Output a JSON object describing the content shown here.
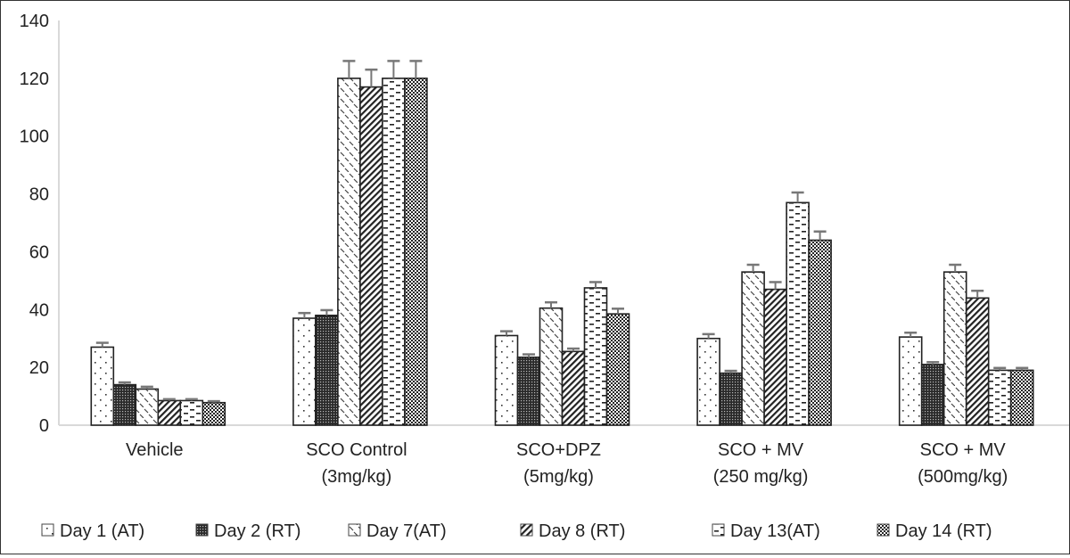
{
  "chart_data": {
    "type": "bar",
    "title": "",
    "xlabel": "",
    "ylabel": "",
    "ylim": [
      0,
      140
    ],
    "yticks": [
      "0",
      "20",
      "40",
      "60",
      "80",
      "100",
      "120",
      "140"
    ],
    "grid": false,
    "legend_position": "bottom",
    "categories": [
      [
        "Vehicle"
      ],
      [
        "SCO Control",
        "(3mg/kg)"
      ],
      [
        "SCO+DPZ",
        "(5mg/kg)"
      ],
      [
        "SCO + MV",
        "(250 mg/kg)"
      ],
      [
        "SCO + MV",
        "(500mg/kg)"
      ]
    ],
    "series": [
      {
        "name": "Day 1 (AT)",
        "pattern": "dots",
        "values": [
          27,
          37,
          31,
          30,
          30.5
        ],
        "errors": [
          1.5,
          1.8,
          1.5,
          1.5,
          1.5
        ]
      },
      {
        "name": "Day 2 (RT)",
        "pattern": "dense-grid",
        "values": [
          14,
          38,
          23.5,
          18,
          21
        ],
        "errors": [
          0.8,
          1.8,
          1,
          0.8,
          0.8
        ]
      },
      {
        "name": "Day 7(AT)",
        "pattern": "dashes-diag",
        "values": [
          12.5,
          120,
          40.5,
          53,
          53
        ],
        "errors": [
          0.8,
          6,
          2,
          2.5,
          2.5
        ]
      },
      {
        "name": "Day 8 (RT)",
        "pattern": "diag-lines",
        "values": [
          8.5,
          117,
          25.5,
          47,
          44
        ],
        "errors": [
          0.5,
          6,
          1,
          2.5,
          2.5
        ]
      },
      {
        "name": "Day 13(AT)",
        "pattern": "h-dashes",
        "values": [
          8.5,
          120,
          47.5,
          77,
          19
        ],
        "errors": [
          0.5,
          6,
          2,
          3.5,
          0.8
        ]
      },
      {
        "name": "Day 14 (RT)",
        "pattern": "checker",
        "values": [
          7.8,
          120,
          38.5,
          64,
          19
        ],
        "errors": [
          0.5,
          6,
          1.8,
          3,
          0.8
        ]
      }
    ]
  },
  "colors": {
    "bar_outline": "#222222",
    "error_bar": "#777777",
    "axis": "#d9d9d9",
    "text": "#222222"
  }
}
